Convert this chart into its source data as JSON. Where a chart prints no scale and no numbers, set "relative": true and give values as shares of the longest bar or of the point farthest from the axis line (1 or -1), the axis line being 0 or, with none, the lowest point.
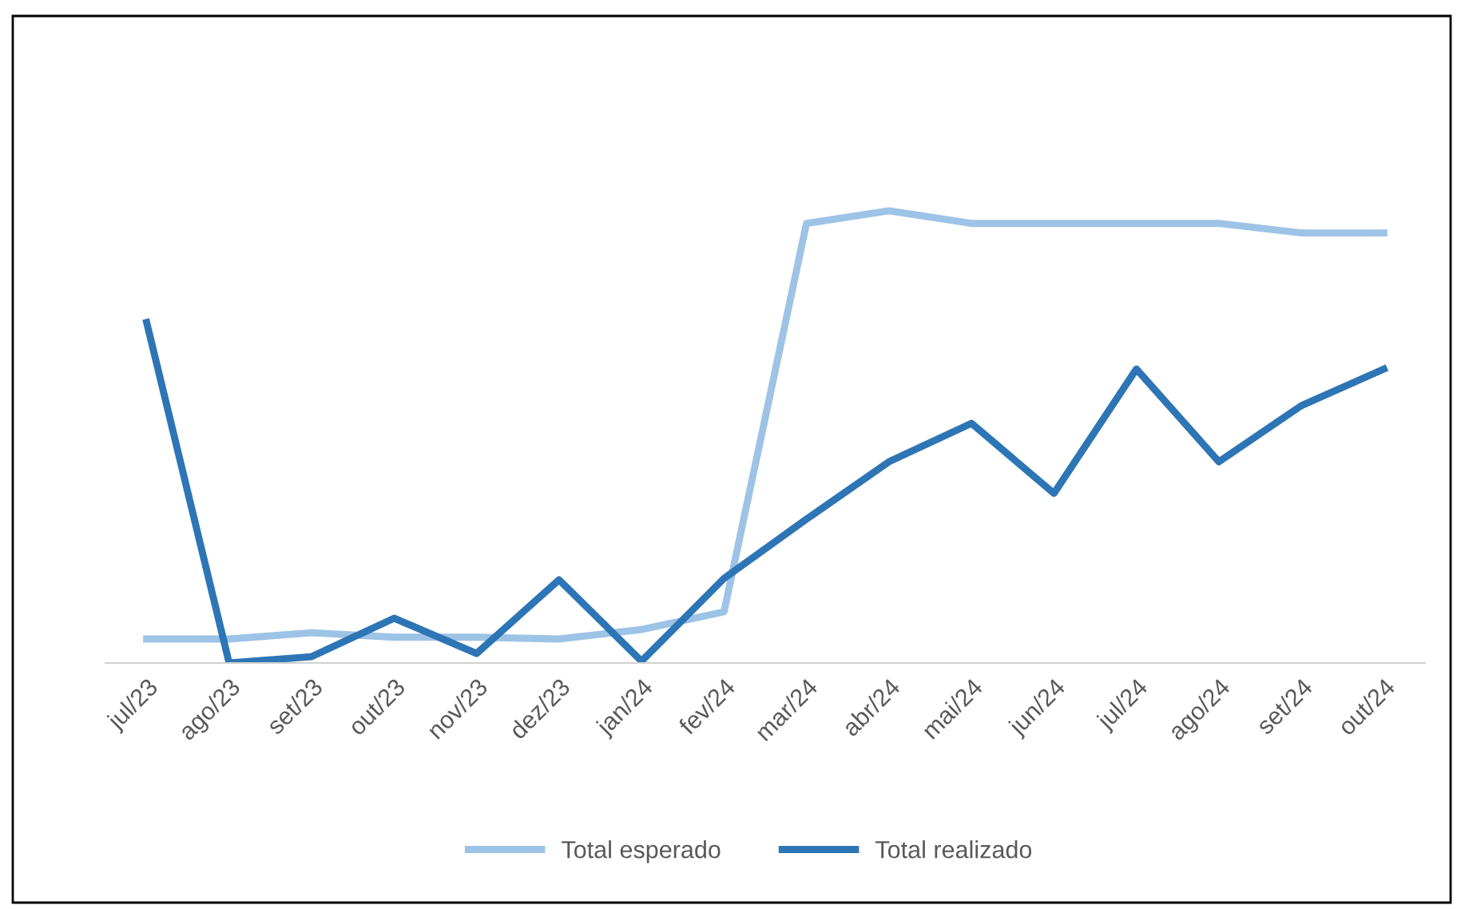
{
  "chart_data": {
    "type": "line",
    "relative": true,
    "categories": [
      "jul/23",
      "ago/23",
      "set/23",
      "out/23",
      "nov/23",
      "dez/23",
      "jan/24",
      "fev/24",
      "mar/24",
      "abr/24",
      "mai/24",
      "jun/24",
      "jul/24",
      "ago/24",
      "set/24",
      "out/24"
    ],
    "series": [
      {
        "name": "Total esperado",
        "color": "#9dc3e6",
        "values": [
          0.053,
          0.053,
          0.067,
          0.057,
          0.057,
          0.053,
          0.074,
          0.113,
          0.972,
          1,
          0.972,
          0.972,
          0.972,
          0.972,
          0.951,
          0.951
        ]
      },
      {
        "name": "Total realizado",
        "color": "#2e75b6",
        "values": [
          0.753,
          0,
          0.014,
          0.099,
          0.021,
          0.184,
          0.004,
          0.187,
          0.318,
          0.445,
          0.53,
          0.375,
          0.65,
          0.445,
          0.569,
          0.65
        ]
      }
    ],
    "legend": "bottom",
    "grid": false,
    "marker": "none",
    "line_style": "solid"
  }
}
